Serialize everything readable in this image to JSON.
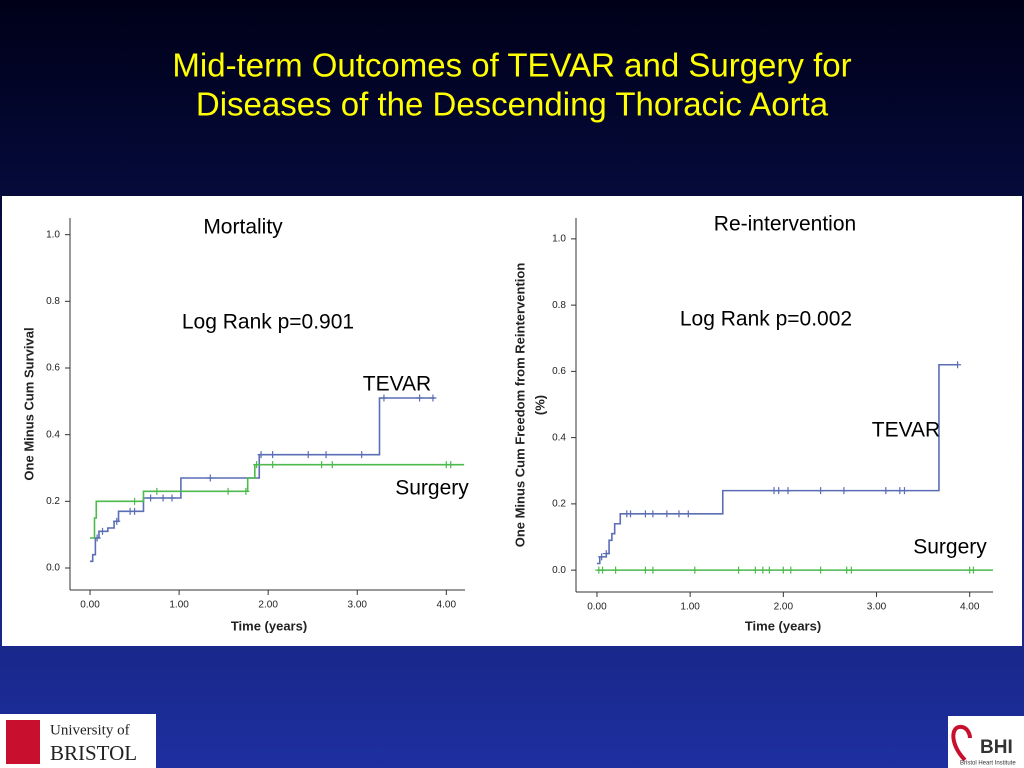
{
  "title": [
    "Mid-term Outcomes of TEVAR and Surgery for",
    "Diseases of the Descending Thoracic Aorta"
  ],
  "logos": {
    "left": [
      "University of",
      "BRISTOL"
    ],
    "right": [
      "BHI",
      "Bristol Heart Institute"
    ]
  },
  "chart_data": [
    {
      "type": "line",
      "step": "post",
      "title": "Mortality",
      "annotations": [
        "Log Rank p=0.901",
        "TEVAR",
        "Surgery"
      ],
      "xlabel": "Time (years)",
      "ylabel": [
        "One Minus Cum Survival"
      ],
      "xlim": [
        -0.225,
        4.21
      ],
      "ylim": [
        -0.066,
        1.05
      ],
      "xticks": [
        {
          "value": 0,
          "label": "0.00"
        },
        {
          "value": 1,
          "label": "1.00"
        },
        {
          "value": 2,
          "label": "2.00"
        },
        {
          "value": 3,
          "label": "3.00"
        },
        {
          "value": 4,
          "label": "4.00"
        }
      ],
      "yticks": [
        {
          "value": 0,
          "label": "0.0"
        },
        {
          "value": 0.2,
          "label": "0.2"
        },
        {
          "value": 0.4,
          "label": "0.4"
        },
        {
          "value": 0.6,
          "label": "0.6"
        },
        {
          "value": 0.8,
          "label": "0.8"
        },
        {
          "value": 1,
          "label": "1.0"
        }
      ],
      "series": [
        {
          "name": "TEVAR",
          "color": "#5a6db5",
          "x": [
            0,
            0.03,
            0.06,
            0.1,
            0.2,
            0.27,
            0.32,
            0.6,
            1.02,
            1.9,
            3.25,
            3.87
          ],
          "values": [
            0.02,
            0.04,
            0.09,
            0.11,
            0.12,
            0.14,
            0.17,
            0.21,
            0.27,
            0.34,
            0.51,
            0.51
          ],
          "censored": {
            "x": [
              0.08,
              0.14,
              0.3,
              0.45,
              0.5,
              0.68,
              0.82,
              0.92,
              1.35,
              1.92,
              2.05,
              2.45,
              2.65,
              3.05,
              3.3,
              3.7,
              3.85
            ],
            "values": [
              0.09,
              0.11,
              0.14,
              0.17,
              0.17,
              0.21,
              0.21,
              0.21,
              0.27,
              0.34,
              0.34,
              0.34,
              0.34,
              0.34,
              0.51,
              0.51,
              0.51
            ]
          }
        },
        {
          "name": "Surgery",
          "color": "#4cba4c",
          "x": [
            0,
            0.05,
            0.07,
            0.6,
            1.0,
            1.77,
            1.85,
            4.2
          ],
          "values": [
            0.09,
            0.15,
            0.2,
            0.23,
            0.23,
            0.27,
            0.31,
            0.31
          ],
          "censored": {
            "x": [
              0.5,
              0.75,
              1.55,
              1.75,
              1.87,
              2.05,
              2.6,
              2.72,
              4.0,
              4.05
            ],
            "values": [
              0.2,
              0.23,
              0.23,
              0.23,
              0.31,
              0.31,
              0.31,
              0.31,
              0.31,
              0.31
            ]
          }
        }
      ]
    },
    {
      "type": "line",
      "step": "post",
      "title": "Re-intervention",
      "annotations": [
        "Log Rank p=0.002",
        "TEVAR",
        "Surgery"
      ],
      "xlabel": "Time (years)",
      "ylabel": [
        "One Minus Cum Freedom from Reintervention",
        "(%)"
      ],
      "xlim": [
        -0.225,
        4.25
      ],
      "ylim": [
        -0.066,
        1.063
      ],
      "xticks": [
        {
          "value": 0,
          "label": "0.00"
        },
        {
          "value": 1,
          "label": "1.00"
        },
        {
          "value": 2,
          "label": "2.00"
        },
        {
          "value": 3,
          "label": "3.00"
        },
        {
          "value": 4,
          "label": "4.00"
        }
      ],
      "yticks": [
        {
          "value": 0,
          "label": "0.0"
        },
        {
          "value": 0.2,
          "label": "0.2"
        },
        {
          "value": 0.4,
          "label": "0.4"
        },
        {
          "value": 0.6,
          "label": "0.6"
        },
        {
          "value": 0.8,
          "label": "0.8"
        },
        {
          "value": 1,
          "label": "1.0"
        }
      ],
      "series": [
        {
          "name": "TEVAR",
          "color": "#5a6db5",
          "x": [
            0,
            0.03,
            0.1,
            0.13,
            0.16,
            0.19,
            0.25,
            1.35,
            3.67,
            3.87
          ],
          "values": [
            0.02,
            0.04,
            0.05,
            0.09,
            0.11,
            0.14,
            0.17,
            0.24,
            0.62,
            0.62
          ],
          "censored": {
            "x": [
              0.05,
              0.1,
              0.32,
              0.36,
              0.52,
              0.6,
              0.75,
              0.88,
              0.98,
              1.9,
              1.95,
              2.05,
              2.4,
              2.65,
              3.1,
              3.25,
              3.3,
              3.87
            ],
            "values": [
              0.04,
              0.05,
              0.17,
              0.17,
              0.17,
              0.17,
              0.17,
              0.17,
              0.17,
              0.24,
              0.24,
              0.24,
              0.24,
              0.24,
              0.24,
              0.24,
              0.24,
              0.62
            ]
          }
        },
        {
          "name": "Surgery",
          "color": "#4cba4c",
          "x": [
            0,
            4.25
          ],
          "values": [
            0,
            0
          ],
          "censored": {
            "x": [
              0.02,
              0.06,
              0.2,
              0.52,
              0.6,
              1.05,
              1.52,
              1.7,
              1.78,
              1.85,
              2.0,
              2.08,
              2.4,
              2.68,
              2.73,
              4.0,
              4.04
            ],
            "values": [
              0,
              0,
              0,
              0,
              0,
              0,
              0,
              0,
              0,
              0,
              0,
              0,
              0,
              0,
              0,
              0,
              0
            ]
          }
        }
      ]
    }
  ]
}
